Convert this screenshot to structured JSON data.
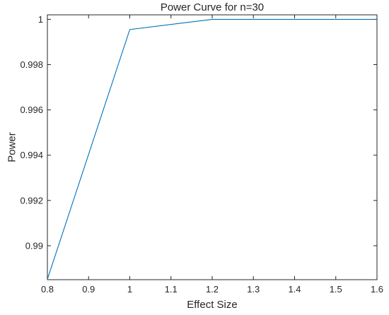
{
  "chart_data": {
    "type": "line",
    "title": "Power Curve for n=30",
    "xlabel": "Effect Size",
    "ylabel": "Power",
    "xlim": [
      0.8,
      1.6
    ],
    "ylim": [
      0.9885,
      1.0002
    ],
    "xticks": [
      "0.8",
      "0.9",
      "1",
      "1.1",
      "1.2",
      "1.3",
      "1.4",
      "1.5",
      "1.6"
    ],
    "yticks": [
      "0.99",
      "0.992",
      "0.994",
      "0.996",
      "0.998",
      "1"
    ],
    "grid": false,
    "series": [
      {
        "color": "#0072BD",
        "x": [
          0.8,
          1.0,
          1.2,
          1.4,
          1.6
        ],
        "y": [
          0.98852,
          0.99955,
          1.0,
          1.0,
          1.0
        ]
      }
    ]
  }
}
